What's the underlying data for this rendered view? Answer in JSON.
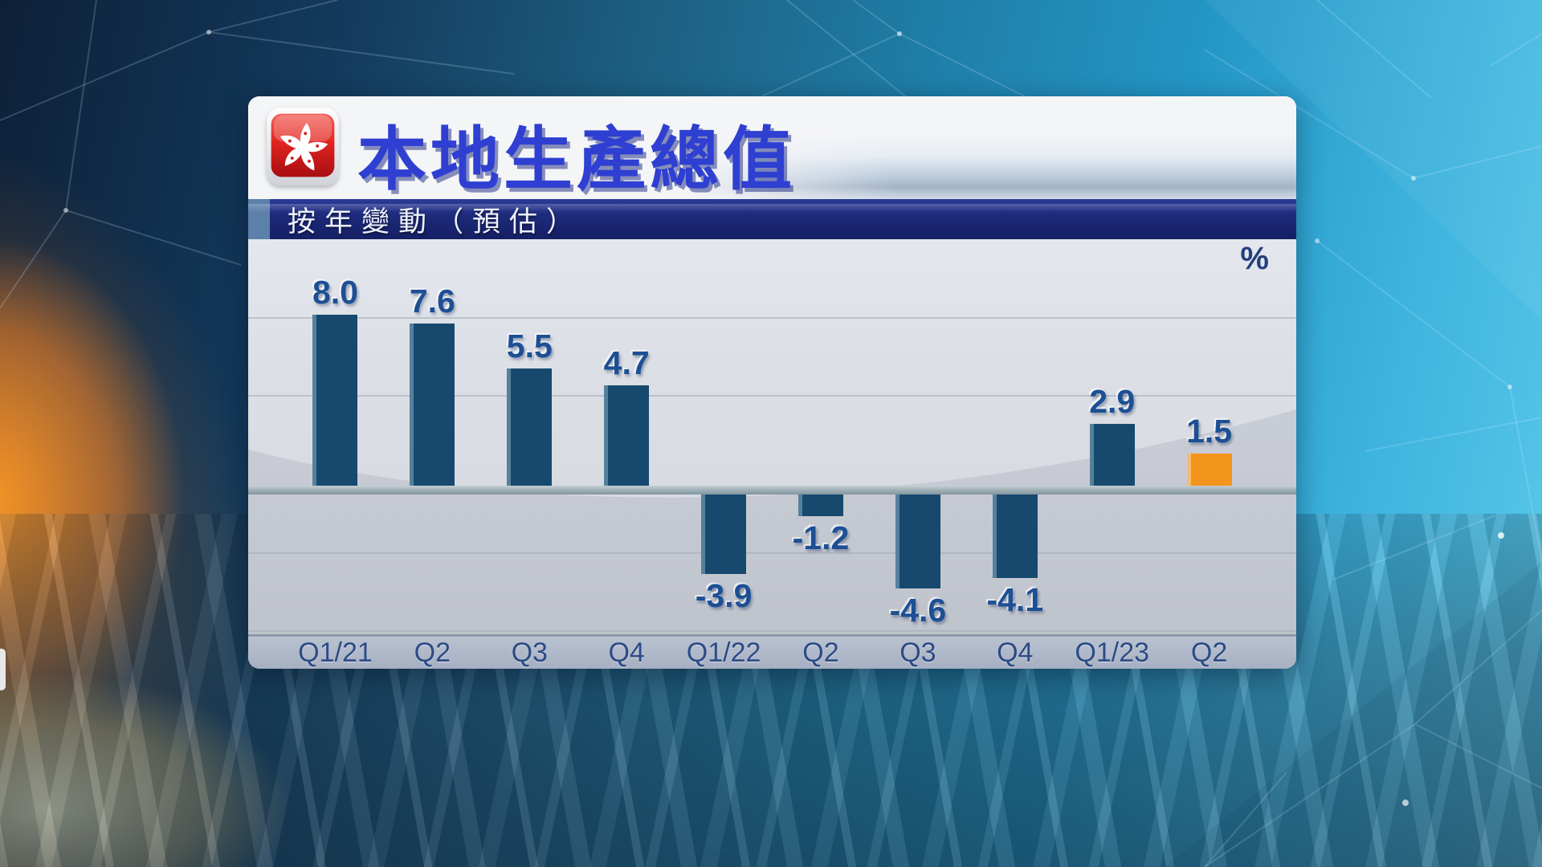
{
  "header": {
    "title": "本地生產總值",
    "flag_icon": "hong-kong-flag-icon"
  },
  "subtitle": {
    "label": "按年變動（預估）"
  },
  "chart_data": {
    "type": "bar",
    "title": "本地生產總值",
    "subtitle": "按年變動（預估）",
    "unit_label": "%",
    "categories": [
      "Q1/21",
      "Q2",
      "Q3",
      "Q4",
      "Q1/22",
      "Q2",
      "Q3",
      "Q4",
      "Q1/23",
      "Q2"
    ],
    "values": [
      8.0,
      7.6,
      5.5,
      4.7,
      -3.9,
      -1.2,
      -4.6,
      -4.1,
      2.9,
      1.5
    ],
    "labels": [
      "8.0",
      "7.6",
      "5.5",
      "4.7",
      "-3.9",
      "-1.2",
      "-4.6",
      "-4.1",
      "2.9",
      "1.5"
    ],
    "highlight_index": 9,
    "bar_color": "#17496f",
    "highlight_color": "#f3941d",
    "value_label_color": "#1d4f94",
    "axis_label_color": "#2c4a86",
    "ylim": [
      -6,
      10
    ],
    "grid": true,
    "zero_line": true,
    "legend_position": "none"
  },
  "colors": {
    "title_blue": "#2e3fd2",
    "subtitle_bar_navy": "#1d2a7a",
    "subtitle_accent": "#5d80ab",
    "panel_background": "#f2f3f6",
    "axis_strip": "#a6b0c2"
  }
}
